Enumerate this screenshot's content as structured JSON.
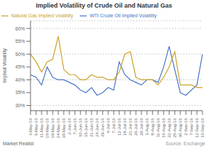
{
  "chart_data": {
    "type": "line",
    "title": "Implied Volatility of Crude Oil and Natural Gas",
    "ylabel": "Implied Volatility",
    "annotations": [
      "Market Realist",
      "Source: Exchange"
    ],
    "categories": [
      "3-May-16",
      "6-May-16",
      "11-May-16",
      "16-May-16",
      "20-May-16",
      "24-May-16",
      "30-May-16",
      "2-Jun-16",
      "7-Jun-16",
      "10-Jun-16",
      "15-Jun-16",
      "21-Jun-16",
      "24-Jun-16",
      "29-Jun-16",
      "4-Jul-16",
      "7-Jul-16",
      "12-Jul-16",
      "18-Jul-16",
      "21-Jul-16",
      "26-Jul-16",
      "29-Jul-16",
      "3-Aug-16",
      "8-Aug-16",
      "11-Aug-16",
      "16-Aug-16",
      "22-Aug-16",
      "25-Aug-16",
      "30-Aug-16",
      "2-Sep-16",
      "7-Sep-16",
      "12-Sep-16",
      "16-Sep-16"
    ],
    "series": [
      {
        "name": "WTI Crude Oil Implied Volatility",
        "color": "#4472c4",
        "values": [
          42,
          41,
          38,
          45,
          41,
          40,
          40,
          39,
          38,
          36,
          35,
          37,
          34,
          35,
          37,
          36,
          47,
          42,
          40,
          39,
          38,
          40,
          40,
          39,
          45,
          53,
          44,
          35,
          34,
          36,
          38,
          50
        ]
      },
      {
        "name": "Natural Gas Implied Volatility",
        "color": "#c8a020",
        "values": [
          50,
          47,
          43,
          47,
          48,
          57,
          44,
          42,
          42,
          40,
          40,
          42,
          41,
          41,
          40,
          40,
          43,
          50,
          51,
          41,
          40,
          40,
          40,
          38,
          41,
          45,
          51,
          38,
          38,
          38,
          37,
          37
        ]
      }
    ],
    "ylim": [
      28,
      63
    ],
    "yticks": [
      {
        "value": 30,
        "label": "30%"
      },
      {
        "value": 35,
        "label": "35%"
      },
      {
        "value": 40,
        "label": "40%"
      },
      {
        "value": 45,
        "label": "45%"
      },
      {
        "value": 50,
        "label": "50%"
      },
      {
        "value": 55,
        "label": "55%"
      },
      {
        "value": 60,
        "label": "60%"
      }
    ],
    "grid": true,
    "legend": "upper left"
  }
}
